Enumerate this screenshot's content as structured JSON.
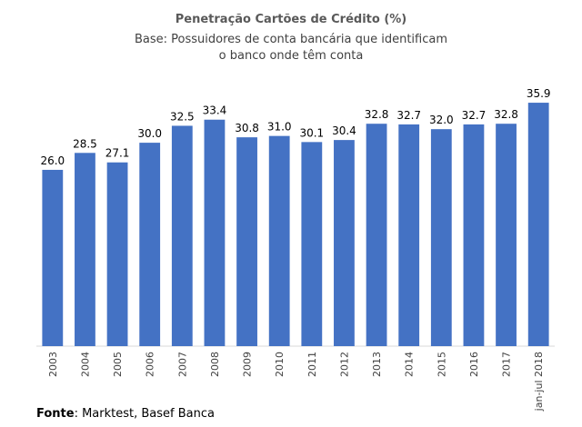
{
  "chart_data": {
    "type": "bar",
    "title": "Penetração Cartões de Crédito (%)",
    "subtitle": [
      "Base: Possuidores de conta bancária que identificam",
      "o banco onde têm conta"
    ],
    "categories": [
      "2003",
      "2004",
      "2005",
      "2006",
      "2007",
      "2008",
      "2009",
      "2010",
      "2011",
      "2012",
      "2013",
      "2014",
      "2015",
      "2016",
      "2017",
      "jan-jul 2018"
    ],
    "values": [
      26.0,
      28.5,
      27.1,
      30.0,
      32.5,
      33.4,
      30.8,
      31.0,
      30.1,
      30.4,
      32.8,
      32.7,
      32.0,
      32.7,
      32.8,
      35.9
    ],
    "value_labels": [
      "26.0",
      "28.5",
      "27.1",
      "30.0",
      "32.5",
      "33.4",
      "30.8",
      "31.0",
      "30.1",
      "30.4",
      "32.8",
      "32.7",
      "32.0",
      "32.7",
      "32.8",
      "35.9"
    ],
    "xlabel": "",
    "ylabel": "",
    "ylim": [
      0,
      40
    ],
    "grid": false,
    "bar_color": "#4472C4"
  },
  "source": {
    "label": "Fonte",
    "text": ": Marktest, Basef Banca"
  }
}
